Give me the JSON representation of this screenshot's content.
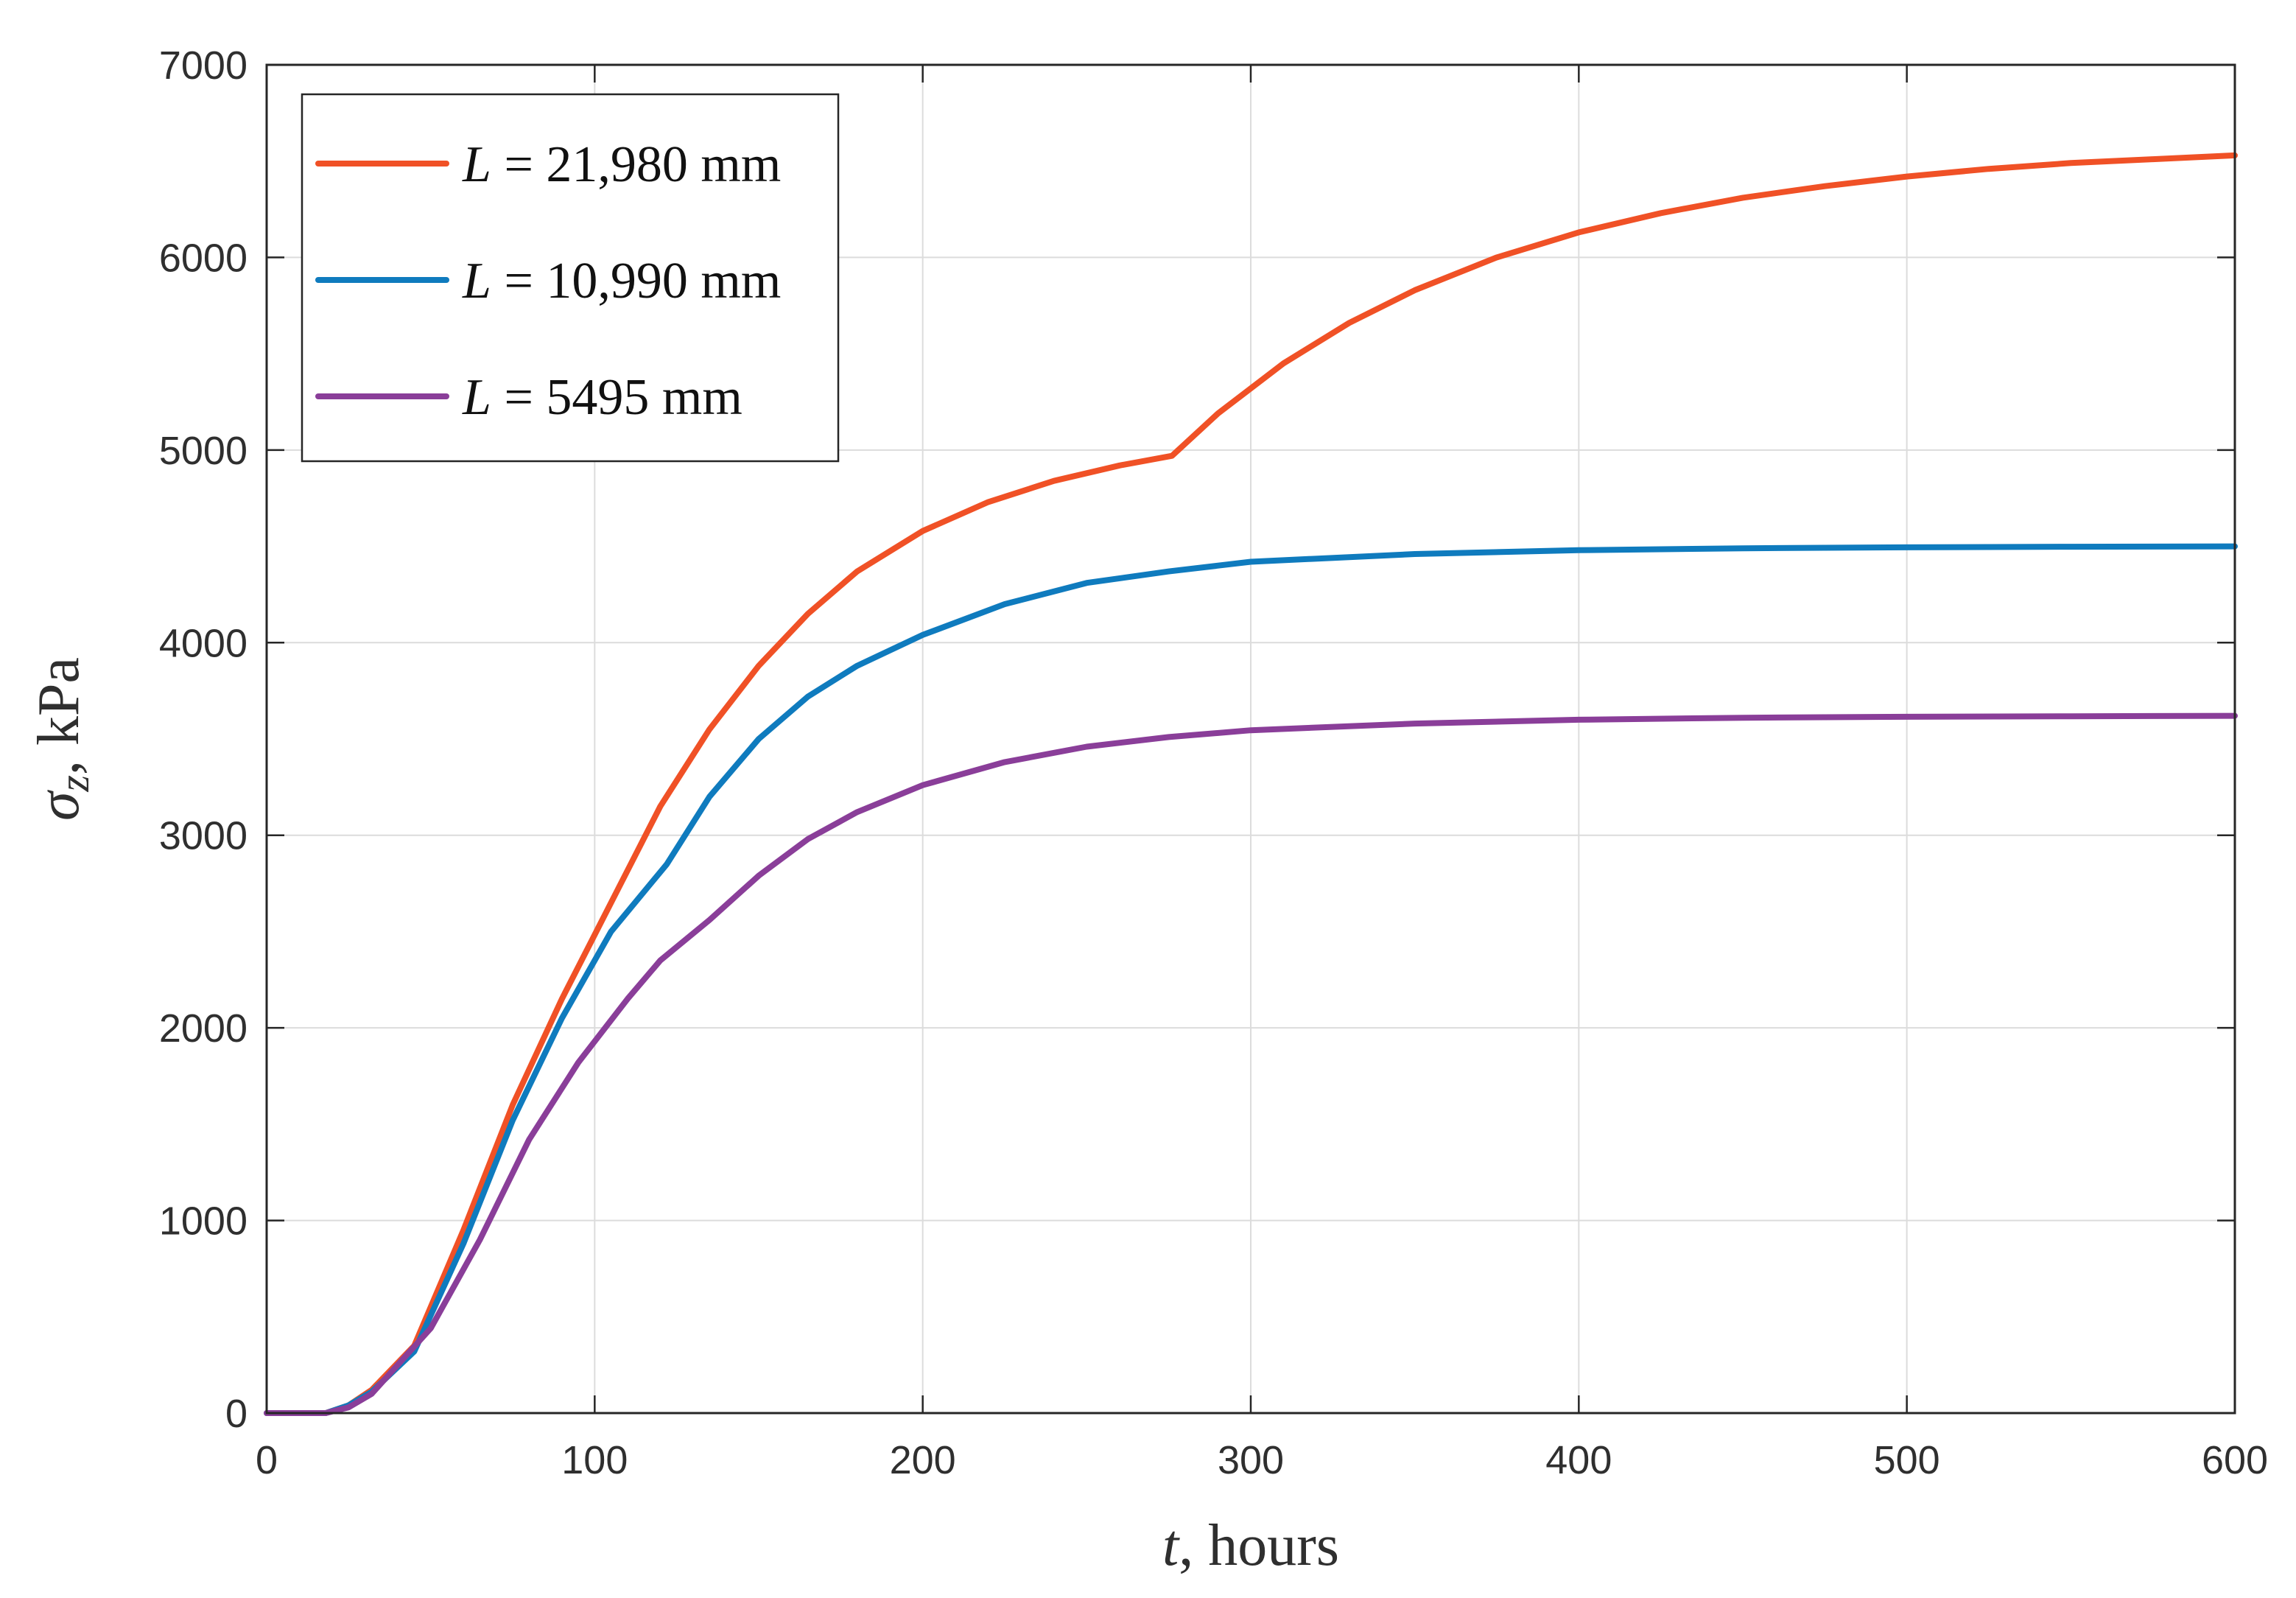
{
  "chart_data": {
    "type": "line",
    "title": "",
    "xlabel": {
      "var": "t",
      "rest": ", hours"
    },
    "ylabel": {
      "var": "σ",
      "sub": "z",
      "rest": ", kPa"
    },
    "xlim": [
      0,
      600
    ],
    "ylim": [
      0,
      7000
    ],
    "xticks": [
      "0",
      "100",
      "200",
      "300",
      "400",
      "500",
      "600"
    ],
    "yticks": [
      "0",
      "1000",
      "2000",
      "3000",
      "4000",
      "5000",
      "6000",
      "7000"
    ],
    "grid": true,
    "legend_position": "top-left",
    "series": [
      {
        "name": "L = 21,980 mm",
        "legend": {
          "var": "L",
          "rest": " = 21,980 mm"
        },
        "color": "#F05126",
        "x": [
          0,
          18,
          25,
          32,
          45,
          60,
          75,
          90,
          105,
          120,
          135,
          150,
          165,
          180,
          200,
          220,
          240,
          260,
          276,
          290,
          310,
          330,
          350,
          375,
          400,
          425,
          450,
          475,
          500,
          525,
          550,
          575,
          600
        ],
        "y": [
          0,
          0,
          40,
          120,
          350,
          950,
          1600,
          2150,
          2650,
          3150,
          3550,
          3880,
          4150,
          4370,
          4580,
          4730,
          4840,
          4920,
          4970,
          5190,
          5450,
          5660,
          5830,
          6000,
          6130,
          6230,
          6310,
          6370,
          6420,
          6460,
          6490,
          6510,
          6530
        ]
      },
      {
        "name": "L = 10,990 mm",
        "legend": {
          "var": "L",
          "rest": " = 10,990 mm"
        },
        "color": "#0F7BBE",
        "x": [
          0,
          18,
          25,
          32,
          45,
          60,
          75,
          90,
          105,
          122,
          135,
          150,
          165,
          180,
          200,
          225,
          250,
          275,
          300,
          350,
          400,
          450,
          500,
          550,
          600
        ],
        "y": [
          0,
          0,
          40,
          110,
          320,
          880,
          1520,
          2050,
          2500,
          2850,
          3200,
          3500,
          3720,
          3880,
          4040,
          4200,
          4310,
          4370,
          4420,
          4460,
          4480,
          4490,
          4495,
          4498,
          4500
        ]
      },
      {
        "name": "L = 5495 mm",
        "legend": {
          "var": "L",
          "rest": " = 5495 mm"
        },
        "color": "#8A3E99",
        "x": [
          0,
          18,
          25,
          32,
          50,
          65,
          80,
          95,
          110,
          120,
          135,
          150,
          165,
          180,
          200,
          225,
          250,
          275,
          300,
          350,
          400,
          450,
          500,
          550,
          600
        ],
        "y": [
          0,
          0,
          30,
          100,
          440,
          900,
          1420,
          1820,
          2150,
          2350,
          2560,
          2790,
          2980,
          3120,
          3260,
          3380,
          3460,
          3510,
          3545,
          3580,
          3600,
          3610,
          3615,
          3618,
          3620
        ]
      }
    ]
  }
}
